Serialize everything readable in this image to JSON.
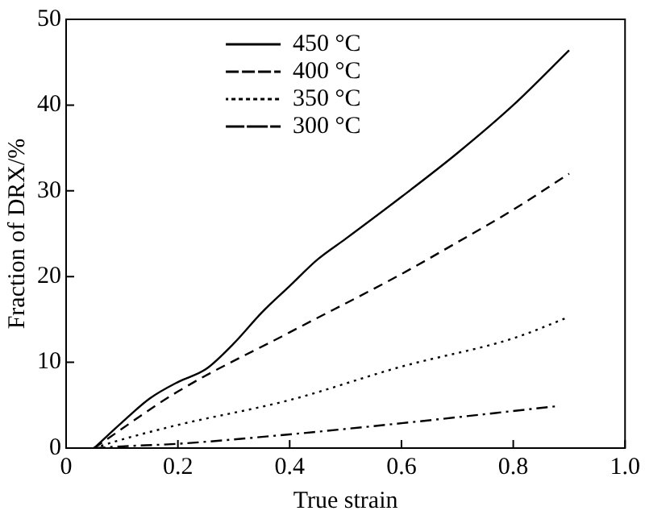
{
  "chart_data": {
    "type": "line",
    "xlabel": "True strain",
    "ylabel": "Fraction of DRX/%",
    "xlim": [
      0,
      1
    ],
    "xticks": [
      0,
      0.2,
      0.4,
      0.6,
      0.8,
      {
        "value": 1,
        "label": "1.0"
      }
    ],
    "ylim": [
      0,
      50
    ],
    "yticks": [
      0,
      10,
      20,
      30,
      40,
      50
    ],
    "grid": false,
    "legend": "top",
    "marker": "none",
    "series": [
      {
        "name": "450 °C",
        "color": "#000000",
        "line_style": "solid",
        "x": [
          0.05,
          0.1,
          0.15,
          0.2,
          0.25,
          0.3,
          0.35,
          0.4,
          0.45,
          0.5,
          0.6,
          0.7,
          0.8,
          0.9
        ],
        "values": [
          0,
          3,
          5.8,
          7.7,
          9.2,
          12.2,
          15.8,
          18.9,
          22,
          24.4,
          29.3,
          34.4,
          40,
          46.4
        ]
      },
      {
        "name": "400 °C",
        "color": "#000000",
        "line_style": "dashed",
        "x": [
          0.05,
          0.2,
          0.4,
          0.6,
          0.7,
          0.8,
          0.9
        ],
        "values": [
          0,
          6.6,
          13.5,
          20.3,
          24,
          27.8,
          32
        ]
      },
      {
        "name": "350 °C",
        "color": "#000000",
        "line_style": "dotted",
        "x": [
          0.05,
          0.1,
          0.2,
          0.4,
          0.6,
          0.8,
          0.9
        ],
        "values": [
          0,
          1,
          2.7,
          5.6,
          9.5,
          12.8,
          15.3
        ]
      },
      {
        "name": "300 °C",
        "color": "#000000",
        "line_style": "dashdot",
        "x": [
          0.05,
          0.1,
          0.2,
          0.4,
          0.6,
          0.88
        ],
        "values": [
          0,
          0.2,
          0.5,
          1.6,
          2.9,
          4.9
        ]
      }
    ]
  }
}
